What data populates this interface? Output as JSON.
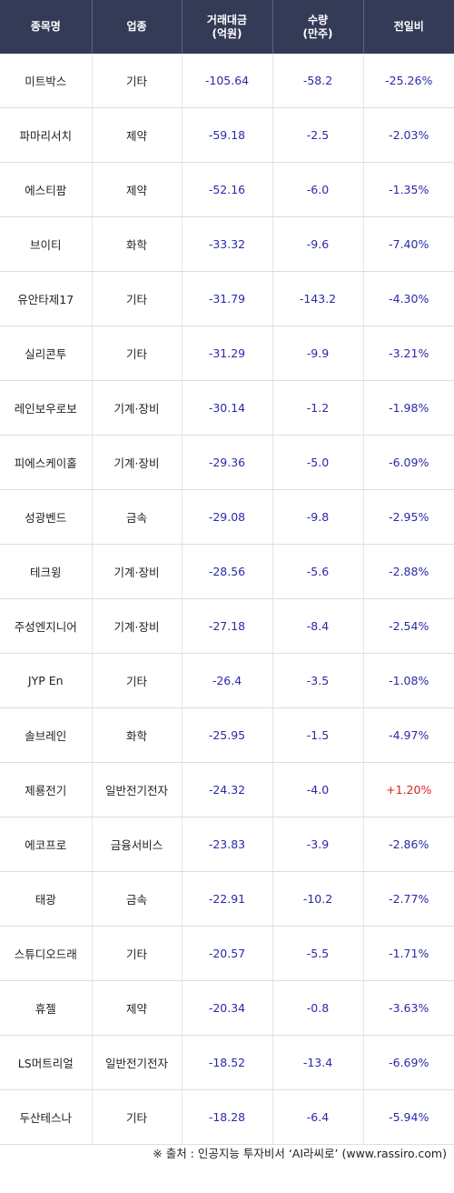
{
  "headers": [
    {
      "line1": "종목명",
      "line2": ""
    },
    {
      "line1": "업종",
      "line2": ""
    },
    {
      "line1": "거래대금",
      "line2": "(억원)"
    },
    {
      "line1": "수량",
      "line2": "(만주)"
    },
    {
      "line1": "전일비",
      "line2": ""
    }
  ],
  "rows": [
    {
      "name": "미트박스",
      "sector": "기타",
      "amount": "-105.64",
      "volume": "-58.2",
      "change": "-25.26%"
    },
    {
      "name": "파마리서치",
      "sector": "제약",
      "amount": "-59.18",
      "volume": "-2.5",
      "change": "-2.03%"
    },
    {
      "name": "에스티팜",
      "sector": "제약",
      "amount": "-52.16",
      "volume": "-6.0",
      "change": "-1.35%"
    },
    {
      "name": "브이티",
      "sector": "화학",
      "amount": "-33.32",
      "volume": "-9.6",
      "change": "-7.40%"
    },
    {
      "name": "유안타제17",
      "sector": "기타",
      "amount": "-31.79",
      "volume": "-143.2",
      "change": "-4.30%"
    },
    {
      "name": "실리콘투",
      "sector": "기타",
      "amount": "-31.29",
      "volume": "-9.9",
      "change": "-3.21%"
    },
    {
      "name": "레인보우로보",
      "sector": "기계·장비",
      "amount": "-30.14",
      "volume": "-1.2",
      "change": "-1.98%"
    },
    {
      "name": "피에스케이홀",
      "sector": "기계·장비",
      "amount": "-29.36",
      "volume": "-5.0",
      "change": "-6.09%"
    },
    {
      "name": "성광벤드",
      "sector": "금속",
      "amount": "-29.08",
      "volume": "-9.8",
      "change": "-2.95%"
    },
    {
      "name": "테크윙",
      "sector": "기계·장비",
      "amount": "-28.56",
      "volume": "-5.6",
      "change": "-2.88%"
    },
    {
      "name": "주성엔지니어",
      "sector": "기계·장비",
      "amount": "-27.18",
      "volume": "-8.4",
      "change": "-2.54%"
    },
    {
      "name": "JYP En",
      "sector": "기타",
      "amount": "-26.4",
      "volume": "-3.5",
      "change": "-1.08%"
    },
    {
      "name": "솔브레인",
      "sector": "화학",
      "amount": "-25.95",
      "volume": "-1.5",
      "change": "-4.97%"
    },
    {
      "name": "제룡전기",
      "sector": "일반전기전자",
      "amount": "-24.32",
      "volume": "-4.0",
      "change": "+1.20%"
    },
    {
      "name": "에코프로",
      "sector": "금융서비스",
      "amount": "-23.83",
      "volume": "-3.9",
      "change": "-2.86%"
    },
    {
      "name": "태광",
      "sector": "금속",
      "amount": "-22.91",
      "volume": "-10.2",
      "change": "-2.77%"
    },
    {
      "name": "스튜디오드래",
      "sector": "기타",
      "amount": "-20.57",
      "volume": "-5.5",
      "change": "-1.71%"
    },
    {
      "name": "휴젤",
      "sector": "제약",
      "amount": "-20.34",
      "volume": "-0.8",
      "change": "-3.63%"
    },
    {
      "name": "LS머트리얼",
      "sector": "일반전기전자",
      "amount": "-18.52",
      "volume": "-13.4",
      "change": "-6.69%"
    },
    {
      "name": "두산테스나",
      "sector": "기타",
      "amount": "-18.28",
      "volume": "-6.4",
      "change": "-5.94%"
    }
  ],
  "footer": "※ 출처 : 인공지능 투자비서 ‘AI라씨로’ (www.rassiro.com)",
  "colors": {
    "header_bg": "#333b57",
    "number": "#2a2aa8",
    "positive": "#dd2222"
  }
}
